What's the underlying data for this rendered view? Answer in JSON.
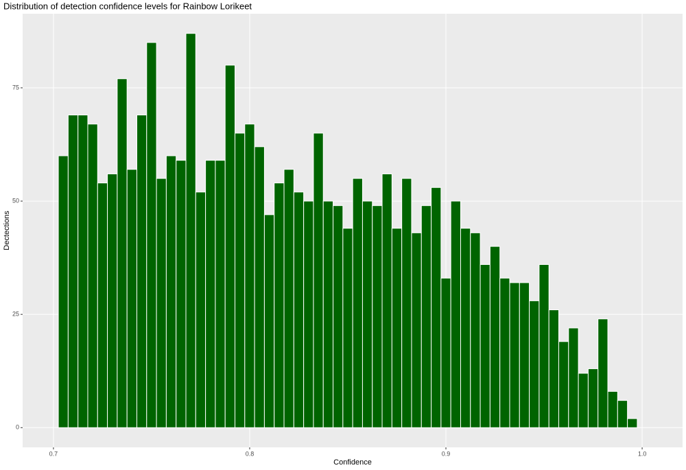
{
  "chart_data": {
    "type": "histogram",
    "title": "Distribution of detection confidence levels for Rainbow Lorikeet",
    "xlabel": "Confidence",
    "ylabel": "Dectections",
    "bins": [
      0.7025,
      0.7075,
      0.7125,
      0.7175,
      0.7225,
      0.7275,
      0.7325,
      0.7375,
      0.7425,
      0.7475,
      0.7525,
      0.7575,
      0.7625,
      0.7675,
      0.7725,
      0.7775,
      0.7825,
      0.7875,
      0.7925,
      0.7975,
      0.8025,
      0.8075,
      0.8125,
      0.8175,
      0.8225,
      0.8275,
      0.8325,
      0.8375,
      0.8425,
      0.8475,
      0.8525,
      0.8575,
      0.8625,
      0.8675,
      0.8725,
      0.8775,
      0.8825,
      0.8875,
      0.8925,
      0.8975,
      0.9025,
      0.9075,
      0.9125,
      0.9175,
      0.9225,
      0.9275,
      0.9325,
      0.9375,
      0.9425,
      0.9475,
      0.9525,
      0.9575,
      0.9625,
      0.9675,
      0.9725,
      0.9775,
      0.9825,
      0.9875,
      0.9925,
      0.9975
    ],
    "values": [
      60,
      69,
      69,
      67,
      54,
      56,
      77,
      57,
      69,
      85,
      55,
      60,
      59,
      87,
      52,
      59,
      59,
      80,
      65,
      67,
      62,
      47,
      54,
      57,
      52,
      50,
      65,
      50,
      49,
      44,
      55,
      50,
      49,
      56,
      44,
      55,
      43,
      49,
      53,
      33,
      50,
      44,
      43,
      36,
      40,
      33,
      32,
      32,
      28,
      36,
      26,
      19,
      22,
      12,
      13,
      24,
      8,
      6,
      2
    ],
    "color": "#006400",
    "xlim": [
      0.6843,
      1.0206
    ],
    "xticks": [
      0.7,
      0.8,
      0.9,
      {
        "value": 1,
        "label": "1.0"
      }
    ],
    "ylim": [
      -4.35,
      91.35
    ],
    "yticks": [
      0,
      25,
      50,
      75
    ],
    "grid": true
  }
}
